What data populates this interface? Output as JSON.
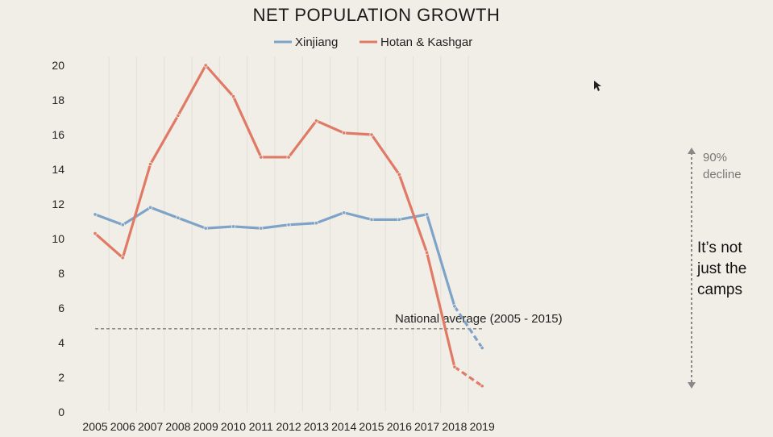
{
  "chart_data": {
    "type": "line",
    "title": "NET POPULATION GROWTH",
    "categories": [
      "2005",
      "2006",
      "2007",
      "2008",
      "2009",
      "2010",
      "2011",
      "2012",
      "2013",
      "2014",
      "2015",
      "2016",
      "2017",
      "2018",
      "2019"
    ],
    "ylim": [
      0,
      20
    ],
    "yticks": [
      0,
      2,
      4,
      6,
      8,
      10,
      12,
      14,
      16,
      18,
      20
    ],
    "grid": "vertical",
    "legend": "top",
    "series": [
      {
        "name": "Xinjiang",
        "color": "#7ea3c8",
        "values": [
          11.4,
          10.8,
          11.8,
          11.2,
          10.6,
          10.7,
          10.6,
          10.8,
          10.9,
          11.5,
          11.1,
          11.1,
          11.4,
          6.1,
          3.7
        ]
      },
      {
        "name": "Hotan & Kashgar",
        "color": "#e07a66",
        "values": [
          10.3,
          8.9,
          14.3,
          17.1,
          20.0,
          18.2,
          14.7,
          14.7,
          16.8,
          16.1,
          16.0,
          13.7,
          9.2,
          2.6,
          1.5
        ]
      }
    ],
    "national_average": {
      "label": "National average (2005 - 2015)",
      "value": 4.8
    },
    "annotations": {
      "decline_line1": "90%",
      "decline_line2": "decline",
      "note_line1": "It’s not",
      "note_line2": "just the",
      "note_line3": "camps"
    }
  }
}
